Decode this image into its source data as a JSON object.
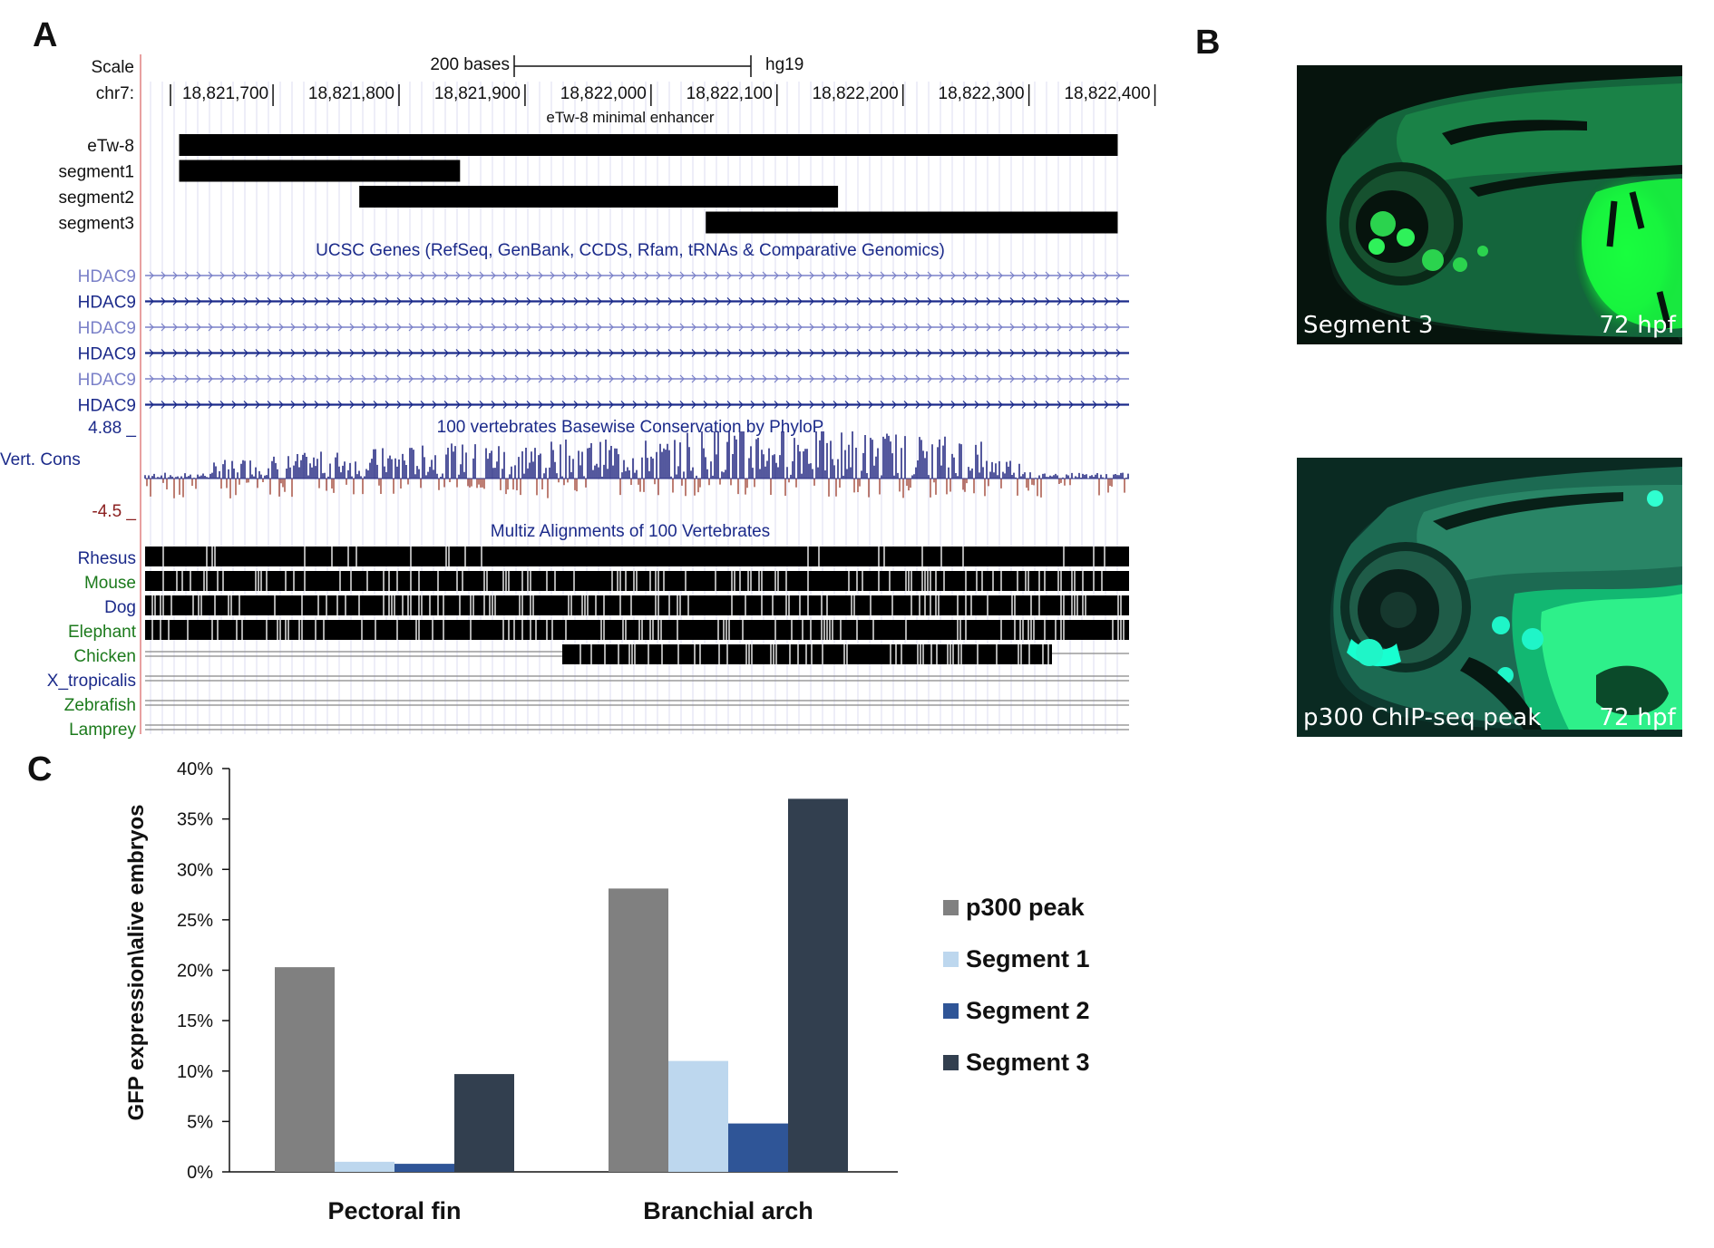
{
  "panels": {
    "a": "A",
    "b": "B",
    "c": "C"
  },
  "browser": {
    "scale_label": "Scale",
    "scale_bar_text": "200 bases",
    "assembly": "hg19",
    "chrom_label": "chr7:",
    "ticks": [
      "18,821,700",
      "18,821,800",
      "18,821,900",
      "18,822,000",
      "18,822,100",
      "18,822,200",
      "18,822,300",
      "18,822,400"
    ],
    "enhancer_track_title": "eTw-8 minimal enhancer",
    "segments": [
      {
        "name": "eTw-8",
        "start": 18821660,
        "end": 18822405
      },
      {
        "name": "segment1",
        "start": 18821660,
        "end": 18821883
      },
      {
        "name": "segment2",
        "start": 18821803,
        "end": 18822183
      },
      {
        "name": "segment3",
        "start": 18822078,
        "end": 18822405
      }
    ],
    "genes_track_title": "UCSC Genes (RefSeq, GenBank, CCDS, Rfam, tRNAs & Comparative Genomics)",
    "genes": [
      {
        "name": "HDAC9",
        "style": "light"
      },
      {
        "name": "HDAC9",
        "style": "dark"
      },
      {
        "name": "HDAC9",
        "style": "light"
      },
      {
        "name": "HDAC9",
        "style": "dark"
      },
      {
        "name": "HDAC9",
        "style": "light"
      },
      {
        "name": "HDAC9",
        "style": "dark"
      }
    ],
    "cons_track_title": "100 vertebrates Basewise Conservation by PhyloP",
    "cons_max": "4.88 _",
    "cons_min": "-4.5 _",
    "cons_label": "Vert. Cons",
    "multiz_track_title": "Multiz Alignments of 100 Vertebrates",
    "species": [
      {
        "name": "Rhesus",
        "color": "#1b2a8a"
      },
      {
        "name": "Mouse",
        "color": "#1c7a1c"
      },
      {
        "name": "Dog",
        "color": "#1b2a8a"
      },
      {
        "name": "Elephant",
        "color": "#1c7a1c"
      },
      {
        "name": "Chicken",
        "color": "#1c7a1c"
      },
      {
        "name": "X_tropicalis",
        "color": "#1b2a8a"
      },
      {
        "name": "Zebrafish",
        "color": "#1c7a1c"
      },
      {
        "name": "Lamprey",
        "color": "#1c7a1c"
      }
    ]
  },
  "photos": [
    {
      "construct": "Segment 3",
      "stage": "72 hpf"
    },
    {
      "construct": "p300 ChIP-seq peak",
      "stage": "72 hpf"
    }
  ],
  "chart_data": {
    "type": "bar",
    "title": "",
    "xlabel": "",
    "ylabel": "GFP expression\\alive embryos",
    "ylim": [
      0,
      0.4
    ],
    "yticks": [
      "0%",
      "5%",
      "10%",
      "15%",
      "20%",
      "25%",
      "30%",
      "35%",
      "40%"
    ],
    "categories": [
      "Pectoral fin",
      "Branchial arch"
    ],
    "series": [
      {
        "name": "p300 peak",
        "color": "#808080",
        "values": [
          0.203,
          0.281
        ]
      },
      {
        "name": "Segment 1",
        "color": "#bdd7ee",
        "values": [
          0.01,
          0.11
        ]
      },
      {
        "name": "Segment 2",
        "color": "#2f5597",
        "values": [
          0.008,
          0.048
        ]
      },
      {
        "name": "Segment 3",
        "color": "#323f4f",
        "values": [
          0.097,
          0.37
        ]
      }
    ],
    "legend_position": "right",
    "grid": false
  }
}
